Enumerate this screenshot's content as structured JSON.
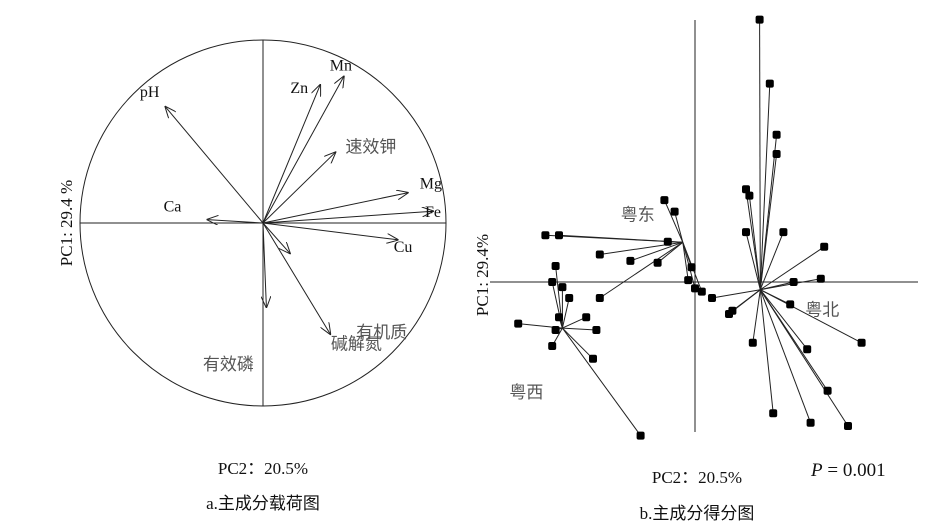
{
  "chart_data": [
    {
      "type": "biplot-loadings",
      "x_axis_label": "PC2：20.5%",
      "y_axis_label": "PC1: 29.4 %",
      "caption": "a.主成分载荷图",
      "loadings": [
        {
          "name": "pH",
          "x": -0.58,
          "y": 0.69
        },
        {
          "name": "Mn",
          "x": 0.48,
          "y": 0.87
        },
        {
          "name": "Zn",
          "x": 0.34,
          "y": 0.82
        },
        {
          "name": "速效钾",
          "x": 0.43,
          "y": 0.42
        },
        {
          "name": "Mg",
          "x": 0.86,
          "y": 0.18
        },
        {
          "name": "Fe",
          "x": 1.01,
          "y": 0.07
        },
        {
          "name": "Ca",
          "x": -0.33,
          "y": 0.02
        },
        {
          "name": "Cu",
          "x": 0.8,
          "y": -0.1
        },
        {
          "name": "有效磷",
          "x": 0.02,
          "y": -0.5
        },
        {
          "name": "有机质",
          "x": 0.4,
          "y": -0.66
        },
        {
          "name": "碱解氮",
          "x": 0.16,
          "y": -0.18
        }
      ]
    },
    {
      "type": "scatter",
      "x_axis_label": "PC2：20.5%",
      "y_axis_label": "PC1: 29.4%",
      "caption": "b.主成分得分图",
      "annotation": "P = 0.001",
      "annotation_parts": {
        "italic": "P",
        "rest": " = 0.001"
      },
      "xlim": [
        -2.9,
        3.6
      ],
      "ylim": [
        -2.5,
        4.5
      ],
      "groups": [
        {
          "name": "粤东",
          "centroid": [
            -0.18,
            0.62
          ],
          "points": [
            [
              -2.2,
              0.73
            ],
            [
              -2.0,
              0.73
            ],
            [
              -1.4,
              0.43
            ],
            [
              -0.45,
              1.28
            ],
            [
              -0.3,
              1.1
            ],
            [
              -0.4,
              0.63
            ],
            [
              -0.55,
              0.3
            ],
            [
              -0.05,
              0.23
            ],
            [
              -0.1,
              0.03
            ],
            [
              0.0,
              -0.1
            ],
            [
              -1.4,
              -0.25
            ],
            [
              -0.95,
              0.33
            ],
            [
              0.1,
              -0.15
            ]
          ]
        },
        {
          "name": "粤北",
          "centroid": [
            0.96,
            -0.12
          ],
          "points": [
            [
              0.95,
              4.1
            ],
            [
              1.1,
              3.1
            ],
            [
              1.2,
              2.3
            ],
            [
              1.2,
              2.0
            ],
            [
              0.75,
              1.45
            ],
            [
              0.8,
              1.35
            ],
            [
              0.75,
              0.78
            ],
            [
              1.3,
              0.78
            ],
            [
              1.9,
              0.55
            ],
            [
              1.85,
              0.05
            ],
            [
              1.45,
              0.0
            ],
            [
              1.4,
              -0.35
            ],
            [
              2.45,
              -0.95
            ],
            [
              1.65,
              -1.05
            ],
            [
              1.95,
              -1.7
            ],
            [
              1.15,
              -2.05
            ],
            [
              1.7,
              -2.2
            ],
            [
              2.25,
              -2.25
            ],
            [
              0.25,
              -0.25
            ],
            [
              0.5,
              -0.5
            ],
            [
              0.85,
              -0.95
            ],
            [
              0.55,
              -0.45
            ]
          ]
        },
        {
          "name": "粤西",
          "centroid": [
            -1.95,
            -0.72
          ],
          "points": [
            [
              -2.05,
              0.25
            ],
            [
              -2.1,
              0.0
            ],
            [
              -1.95,
              -0.08
            ],
            [
              -1.85,
              -0.25
            ],
            [
              -2.0,
              -0.55
            ],
            [
              -2.6,
              -0.65
            ],
            [
              -2.05,
              -0.75
            ],
            [
              -1.45,
              -0.75
            ],
            [
              -2.1,
              -1.0
            ],
            [
              -1.5,
              -1.2
            ],
            [
              -0.8,
              -2.4
            ],
            [
              -1.6,
              -0.55
            ]
          ]
        }
      ]
    }
  ]
}
